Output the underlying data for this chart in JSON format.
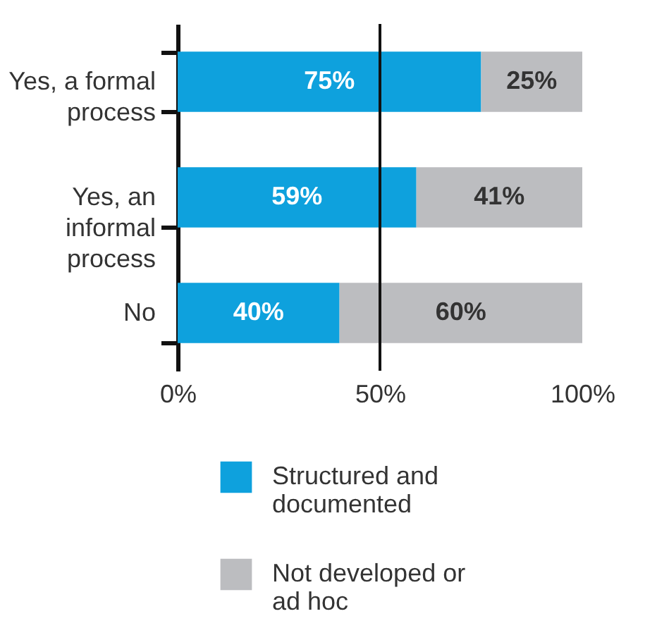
{
  "chart_data": {
    "type": "bar",
    "orientation": "horizontal",
    "stacked": true,
    "categories": [
      "Yes, a formal process",
      "Yes, an informal process",
      "No"
    ],
    "series": [
      {
        "name": "Structured and documented",
        "color": "#0ea1dd",
        "values": [
          75,
          59,
          40
        ],
        "value_labels": [
          "75%",
          "59%",
          "40%"
        ]
      },
      {
        "name": "Not developed or ad hoc",
        "color": "#bcbdc0",
        "values": [
          25,
          41,
          60
        ],
        "value_labels": [
          "25%",
          "41%",
          "60%"
        ]
      }
    ],
    "xlim": [
      0,
      100
    ],
    "xticks": [
      {
        "value": 0,
        "label": "0%"
      },
      {
        "value": 50,
        "label": "50%"
      },
      {
        "value": 100,
        "label": "100%"
      }
    ],
    "ref_lines": [
      {
        "axis": "x",
        "value": 50
      }
    ],
    "grid": false,
    "legend": "bottom"
  }
}
